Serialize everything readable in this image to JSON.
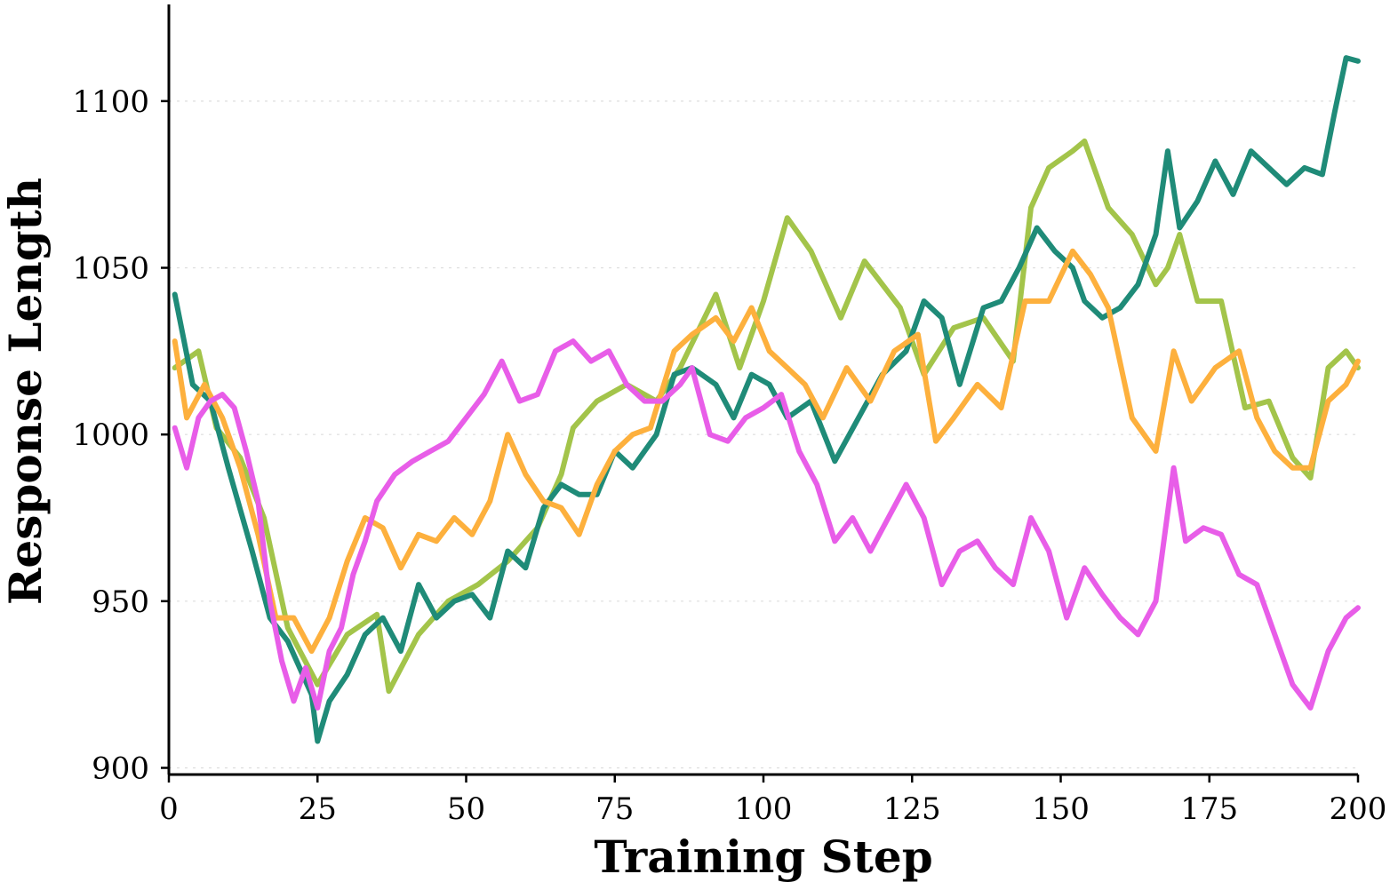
{
  "chart_data": {
    "type": "line",
    "title": "",
    "xlabel": "Training Step",
    "ylabel": "Response Length",
    "xlim": [
      0,
      200
    ],
    "ylim": [
      898,
      1129
    ],
    "xticks": [
      0,
      25,
      50,
      75,
      100,
      125,
      150,
      175,
      200
    ],
    "yticks": [
      900,
      950,
      1000,
      1050,
      1100
    ],
    "xtick_labels": [
      "0",
      "25",
      "50",
      "75",
      "100",
      "125",
      "150",
      "175",
      "200"
    ],
    "ytick_labels": [
      "900",
      "950",
      "1000",
      "1050",
      "1100"
    ],
    "grid": "horizontal dotted",
    "legend": "none",
    "series": [
      {
        "color": "#a3c44a",
        "x": [
          1,
          5,
          8,
          12,
          16,
          20,
          25,
          30,
          35,
          37,
          42,
          47,
          52,
          57,
          62,
          66,
          68,
          72,
          77,
          82,
          86,
          92,
          96,
          100,
          104,
          108,
          113,
          117,
          123,
          127,
          132,
          137,
          142,
          145,
          148,
          152,
          154,
          158,
          162,
          166,
          168,
          170,
          173,
          177,
          181,
          185,
          189,
          192,
          195,
          198,
          200
        ],
        "values": [
          1020,
          1025,
          1002,
          993,
          975,
          942,
          925,
          940,
          946,
          923,
          940,
          950,
          955,
          962,
          972,
          988,
          1002,
          1010,
          1015,
          1010,
          1020,
          1042,
          1020,
          1040,
          1065,
          1055,
          1035,
          1052,
          1038,
          1018,
          1032,
          1035,
          1022,
          1068,
          1080,
          1085,
          1088,
          1068,
          1060,
          1045,
          1050,
          1060,
          1040,
          1040,
          1008,
          1010,
          993,
          987,
          1020,
          1025,
          1020
        ]
      },
      {
        "color": "#1f8b78",
        "x": [
          1,
          4,
          7,
          10,
          14,
          17,
          20,
          24,
          25,
          27,
          30,
          33,
          36,
          39,
          42,
          45,
          48,
          51,
          54,
          57,
          60,
          63,
          66,
          69,
          72,
          75,
          78,
          82,
          85,
          88,
          92,
          95,
          98,
          101,
          104,
          108,
          112,
          116,
          120,
          124,
          127,
          130,
          133,
          137,
          140,
          143,
          146,
          149,
          152,
          154,
          157,
          160,
          163,
          166,
          168,
          170,
          173,
          176,
          179,
          182,
          185,
          188,
          191,
          194,
          196,
          198,
          200
        ],
        "values": [
          1042,
          1015,
          1010,
          990,
          965,
          945,
          938,
          922,
          908,
          920,
          928,
          940,
          945,
          935,
          955,
          945,
          950,
          952,
          945,
          965,
          960,
          978,
          985,
          982,
          982,
          995,
          990,
          1000,
          1018,
          1020,
          1015,
          1005,
          1018,
          1015,
          1005,
          1010,
          992,
          1005,
          1018,
          1025,
          1040,
          1035,
          1015,
          1038,
          1040,
          1050,
          1062,
          1055,
          1050,
          1040,
          1035,
          1038,
          1045,
          1060,
          1085,
          1062,
          1070,
          1082,
          1072,
          1085,
          1080,
          1075,
          1080,
          1078,
          1096,
          1113,
          1112
        ]
      },
      {
        "color": "#fdb03d",
        "x": [
          1,
          3,
          6,
          9,
          12,
          15,
          18,
          21,
          24,
          27,
          30,
          33,
          36,
          39,
          42,
          45,
          48,
          51,
          54,
          57,
          60,
          63,
          66,
          69,
          72,
          75,
          78,
          81,
          85,
          88,
          92,
          95,
          98,
          101,
          104,
          107,
          110,
          114,
          118,
          122,
          126,
          129,
          132,
          136,
          140,
          144,
          148,
          152,
          155,
          158,
          162,
          166,
          169,
          172,
          176,
          180,
          183,
          186,
          189,
          192,
          195,
          198,
          200
        ],
        "values": [
          1028,
          1005,
          1015,
          1005,
          990,
          970,
          945,
          945,
          935,
          945,
          962,
          975,
          972,
          960,
          970,
          968,
          975,
          970,
          980,
          1000,
          988,
          980,
          978,
          970,
          985,
          995,
          1000,
          1002,
          1025,
          1030,
          1035,
          1028,
          1038,
          1025,
          1020,
          1015,
          1005,
          1020,
          1010,
          1025,
          1030,
          998,
          1005,
          1015,
          1008,
          1040,
          1040,
          1055,
          1048,
          1038,
          1005,
          995,
          1025,
          1010,
          1020,
          1025,
          1005,
          995,
          990,
          990,
          1010,
          1015,
          1022
        ]
      },
      {
        "color": "#e85de8",
        "x": [
          1,
          3,
          5,
          7,
          9,
          11,
          13,
          15,
          17,
          19,
          21,
          23,
          25,
          27,
          29,
          31,
          33,
          35,
          38,
          41,
          44,
          47,
          50,
          53,
          56,
          59,
          62,
          65,
          68,
          71,
          74,
          77,
          80,
          83,
          86,
          88,
          91,
          94,
          97,
          100,
          103,
          106,
          109,
          112,
          115,
          118,
          121,
          124,
          127,
          130,
          133,
          136,
          139,
          142,
          145,
          148,
          151,
          154,
          157,
          160,
          163,
          166,
          169,
          171,
          174,
          177,
          180,
          183,
          186,
          189,
          192,
          195,
          198,
          200
        ],
        "values": [
          1002,
          990,
          1005,
          1010,
          1012,
          1008,
          995,
          980,
          950,
          932,
          920,
          930,
          918,
          935,
          942,
          958,
          968,
          980,
          988,
          992,
          995,
          998,
          1005,
          1012,
          1022,
          1010,
          1012,
          1025,
          1028,
          1022,
          1025,
          1015,
          1010,
          1010,
          1015,
          1020,
          1000,
          998,
          1005,
          1008,
          1012,
          995,
          985,
          968,
          975,
          965,
          975,
          985,
          975,
          955,
          965,
          968,
          960,
          955,
          975,
          965,
          945,
          960,
          952,
          945,
          940,
          950,
          990,
          968,
          972,
          970,
          958,
          955,
          940,
          925,
          918,
          935,
          945,
          948
        ]
      }
    ]
  }
}
